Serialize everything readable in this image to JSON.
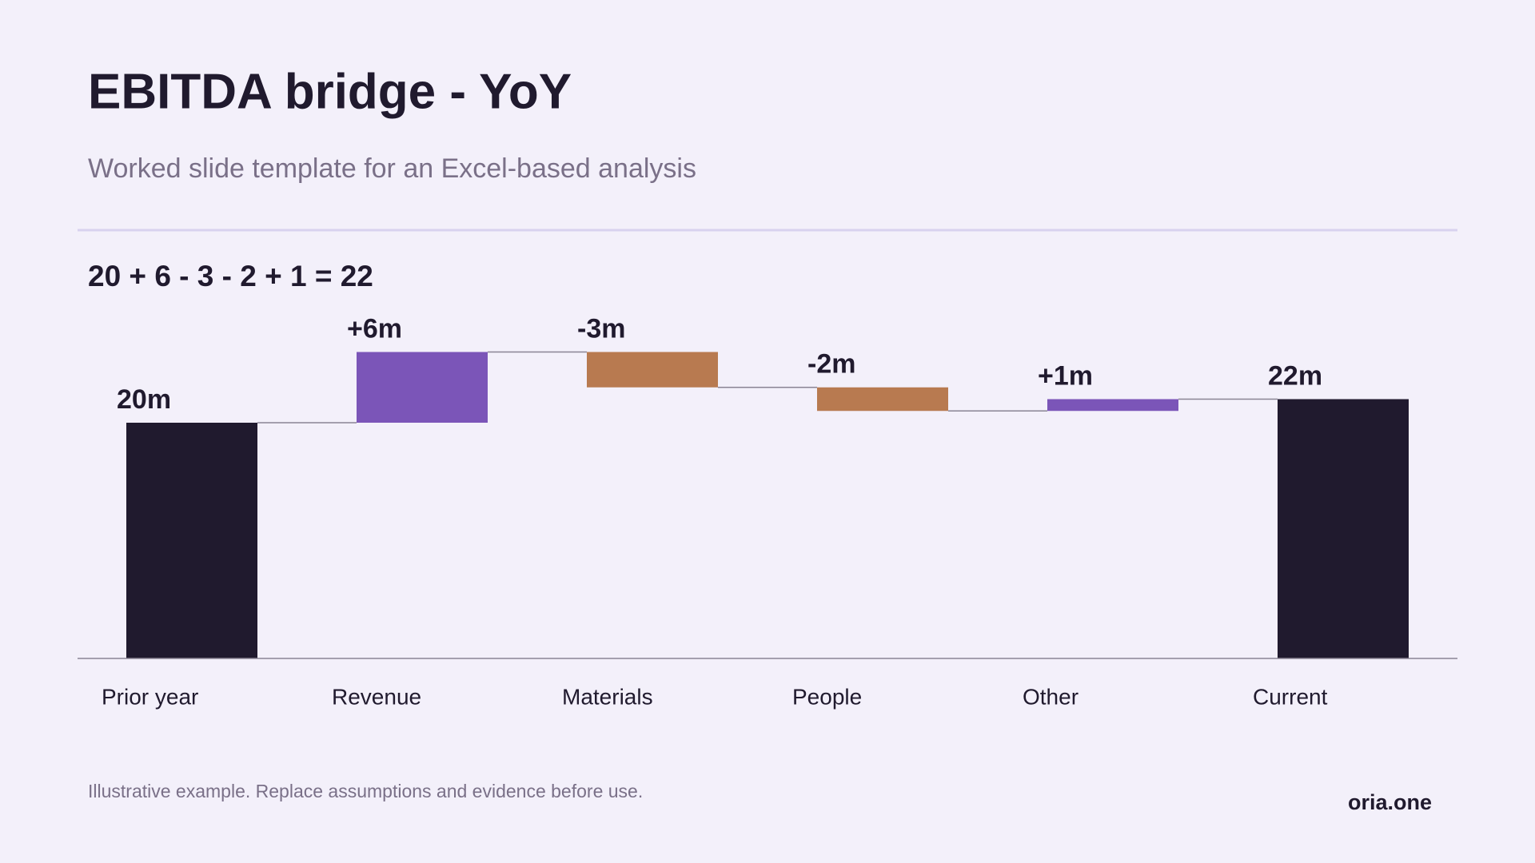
{
  "chart_data": {
    "type": "waterfall",
    "title": "EBITDA bridge - YoY",
    "subtitle": "Worked slide template for an Excel-based analysis",
    "equation": "20 + 6 - 3 - 2 + 1 = 22",
    "categories": [
      "Prior year",
      "Revenue",
      "Materials",
      "People",
      "Other",
      "Current"
    ],
    "values": [
      20,
      6,
      -3,
      -2,
      1,
      22
    ],
    "value_labels": [
      "20m",
      "+6m",
      "-3m",
      "-2m",
      "+1m",
      "22m"
    ],
    "kinds": [
      "total",
      "delta",
      "delta",
      "delta",
      "delta",
      "total"
    ],
    "colors": {
      "total": "#201a2e",
      "increase": "#7b55b8",
      "decrease": "#b87a50"
    },
    "ylim": [
      0,
      28
    ],
    "footnote": "Illustrative example. Replace assumptions and evidence before use.",
    "brand": "oria.one"
  }
}
